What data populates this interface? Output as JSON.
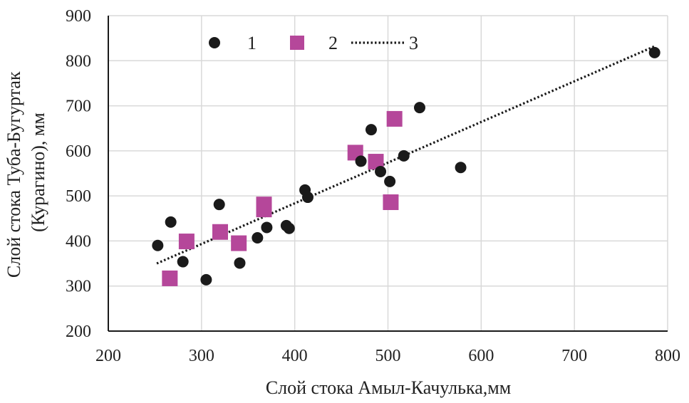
{
  "chart_data": {
    "type": "scatter",
    "title": "",
    "xlabel": "Слой стока Амыл-Качулька,мм",
    "ylabel_line1": "Слой стока Туба-Бугуртак",
    "ylabel_line2": "(Курагино), мм",
    "xlim": [
      200,
      800
    ],
    "ylim": [
      200,
      900
    ],
    "xticks": [
      200,
      300,
      400,
      500,
      600,
      700,
      800
    ],
    "yticks": [
      200,
      300,
      400,
      500,
      600,
      700,
      800,
      900
    ],
    "xtick_labels": [
      "200",
      "300",
      "400",
      "500",
      "600",
      "700",
      "800"
    ],
    "ytick_labels": [
      "200",
      "300",
      "400",
      "500",
      "600",
      "700",
      "800",
      "900"
    ],
    "grid": true,
    "legend_position": "top-left",
    "series": [
      {
        "name": "1",
        "marker": "circle",
        "color": "#1a1a1a",
        "points": [
          [
            253,
            390
          ],
          [
            267,
            442
          ],
          [
            280,
            354
          ],
          [
            305,
            314
          ],
          [
            319,
            481
          ],
          [
            341,
            351
          ],
          [
            360,
            407
          ],
          [
            370,
            430
          ],
          [
            391,
            434
          ],
          [
            394,
            428
          ],
          [
            411,
            513
          ],
          [
            414,
            497
          ],
          [
            471,
            577
          ],
          [
            482,
            647
          ],
          [
            492,
            554
          ],
          [
            502,
            532
          ],
          [
            517,
            589
          ],
          [
            534,
            696
          ],
          [
            578,
            563
          ],
          [
            786,
            818
          ]
        ]
      },
      {
        "name": "2",
        "marker": "square",
        "color": "#b5479a",
        "points": [
          [
            266,
            317
          ],
          [
            284,
            399
          ],
          [
            320,
            420
          ],
          [
            340,
            395
          ],
          [
            367,
            470
          ],
          [
            367,
            481
          ],
          [
            465,
            596
          ],
          [
            487,
            576
          ],
          [
            503,
            486
          ],
          [
            507,
            671
          ]
        ]
      },
      {
        "name": "3",
        "marker": "dotted-line",
        "color": "#1a1a1a",
        "line": [
          [
            252,
            350
          ],
          [
            786,
            832
          ]
        ]
      }
    ]
  }
}
